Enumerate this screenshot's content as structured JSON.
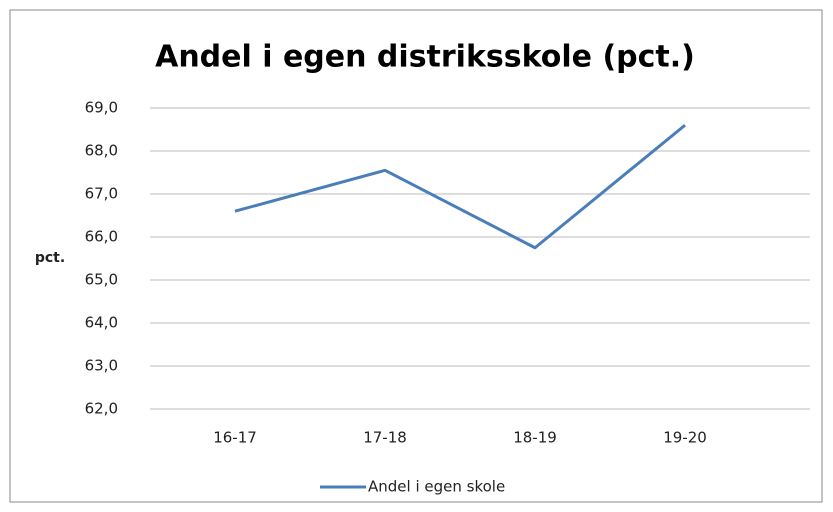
{
  "chart_data": {
    "type": "line",
    "title": "Andel i egen distriksskole (pct.)",
    "y_label": "pct.",
    "categories": [
      "16-17",
      "17-18",
      "18-19",
      "19-20"
    ],
    "series": [
      {
        "name": "Andel i egen skole",
        "color": "#4a7ebb",
        "values": [
          66.6,
          67.55,
          65.75,
          68.6
        ]
      }
    ],
    "ylim": [
      62,
      69
    ],
    "yticks": [
      {
        "value": 62,
        "label": "62,0"
      },
      {
        "value": 63,
        "label": "63,0"
      },
      {
        "value": 64,
        "label": "64,0"
      },
      {
        "value": 65,
        "label": "65,0"
      },
      {
        "value": 66,
        "label": "66,0"
      },
      {
        "value": 67,
        "label": "67,0"
      },
      {
        "value": 68,
        "label": "68,0"
      },
      {
        "value": 69,
        "label": "69,0"
      }
    ],
    "grid": true,
    "legend": "bottom"
  }
}
